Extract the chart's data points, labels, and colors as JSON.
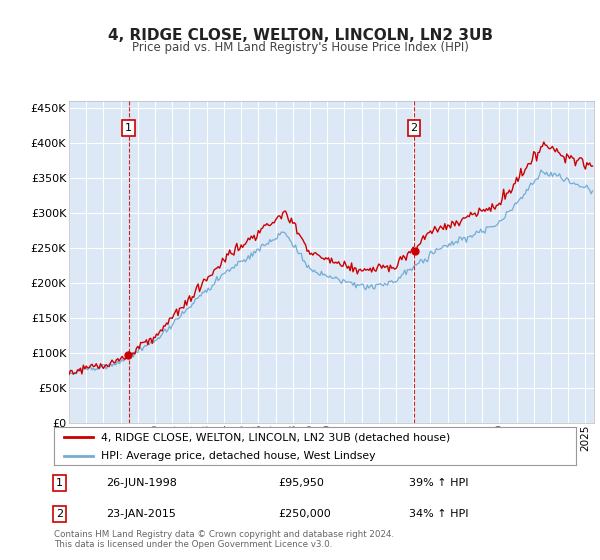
{
  "title": "4, RIDGE CLOSE, WELTON, LINCOLN, LN2 3UB",
  "subtitle": "Price paid vs. HM Land Registry's House Price Index (HPI)",
  "legend_line1": "4, RIDGE CLOSE, WELTON, LINCOLN, LN2 3UB (detached house)",
  "legend_line2": "HPI: Average price, detached house, West Lindsey",
  "footnote": "Contains HM Land Registry data © Crown copyright and database right 2024.\nThis data is licensed under the Open Government Licence v3.0.",
  "purchase1_date": "26-JUN-1998",
  "purchase1_price": 95950,
  "purchase1_hpi": "39% ↑ HPI",
  "purchase2_date": "23-JAN-2015",
  "purchase2_price": 250000,
  "purchase2_hpi": "34% ↑ HPI",
  "purchase1_year": 1998.458,
  "purchase2_year": 2015.042,
  "ylim": [
    0,
    460000
  ],
  "xlim_start": 1995.0,
  "xlim_end": 2025.5,
  "hpi_color": "#74acd5",
  "price_color": "#cc0000",
  "bg_color": "#dce8f5",
  "grid_color": "#ffffff",
  "vline_color": "#cc0000"
}
